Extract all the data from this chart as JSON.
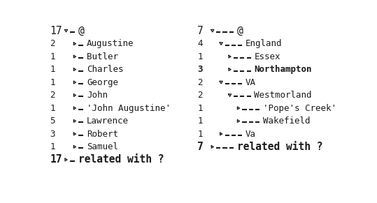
{
  "left_panel": {
    "rows": [
      {
        "num": "17",
        "indent": 0,
        "arrow": "down",
        "label": "@",
        "bold": false,
        "big": true
      },
      {
        "num": "2",
        "indent": 1,
        "arrow": "right",
        "label": "Augustine",
        "bold": false,
        "big": false
      },
      {
        "num": "1",
        "indent": 1,
        "arrow": "right",
        "label": "Butler",
        "bold": false,
        "big": false
      },
      {
        "num": "1",
        "indent": 1,
        "arrow": "right",
        "label": "Charles",
        "bold": false,
        "big": false
      },
      {
        "num": "1",
        "indent": 1,
        "arrow": "right",
        "label": "George",
        "bold": false,
        "big": false
      },
      {
        "num": "2",
        "indent": 1,
        "arrow": "right",
        "label": "John",
        "bold": false,
        "big": false
      },
      {
        "num": "1",
        "indent": 1,
        "arrow": "right",
        "label": "'John Augustine'",
        "bold": false,
        "big": false
      },
      {
        "num": "5",
        "indent": 1,
        "arrow": "right",
        "label": "Lawrence",
        "bold": false,
        "big": false
      },
      {
        "num": "3",
        "indent": 1,
        "arrow": "right",
        "label": "Robert",
        "bold": false,
        "big": false
      },
      {
        "num": "1",
        "indent": 1,
        "arrow": "right",
        "label": "Samuel",
        "bold": false,
        "big": false
      },
      {
        "num": "17",
        "indent": 0,
        "arrow": "right",
        "label": "related with ?",
        "bold": true,
        "big": true
      }
    ],
    "dash_counts": [
      1,
      1,
      1,
      1,
      1,
      1,
      1,
      1,
      1,
      1,
      1
    ]
  },
  "right_panel": {
    "rows": [
      {
        "num": "7",
        "indent": 0,
        "arrow": "down",
        "label": "@",
        "bold": false,
        "big": true
      },
      {
        "num": "4",
        "indent": 1,
        "arrow": "down",
        "label": "England",
        "bold": false,
        "big": false
      },
      {
        "num": "1",
        "indent": 2,
        "arrow": "right",
        "label": "Essex",
        "bold": false,
        "big": false
      },
      {
        "num": "3",
        "indent": 2,
        "arrow": "right",
        "label": "Northampton",
        "bold": true,
        "big": false
      },
      {
        "num": "2",
        "indent": 1,
        "arrow": "down",
        "label": "VA",
        "bold": false,
        "big": false
      },
      {
        "num": "2",
        "indent": 2,
        "arrow": "down",
        "label": "Westmorland",
        "bold": false,
        "big": false
      },
      {
        "num": "1",
        "indent": 3,
        "arrow": "right",
        "label": "'Pope\\'s Creek'",
        "bold": false,
        "big": false
      },
      {
        "num": "1",
        "indent": 3,
        "arrow": "right",
        "label": "Wakefield",
        "bold": false,
        "big": false
      },
      {
        "num": "1",
        "indent": 1,
        "arrow": "right",
        "label": "Va",
        "bold": false,
        "big": false
      },
      {
        "num": "7",
        "indent": 0,
        "arrow": "right",
        "label": "related with ?",
        "bold": true,
        "big": true
      }
    ],
    "dash_counts": [
      3,
      3,
      3,
      3,
      3,
      3,
      3,
      3,
      3,
      3
    ]
  },
  "bg_color": "#ffffff",
  "text_color": "#1a1a1a",
  "font_size": 9.0,
  "font_size_big": 10.5
}
